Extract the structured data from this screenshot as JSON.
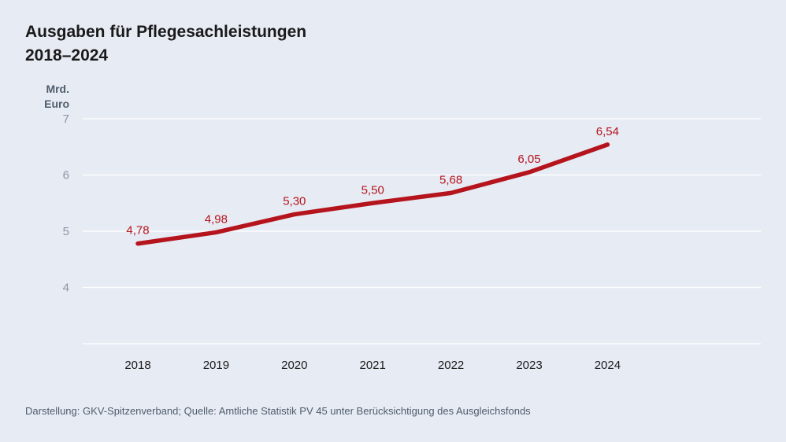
{
  "title": {
    "line1": "Ausgaben für Pflegesachleistungen",
    "line2": "2018–2024"
  },
  "unit": {
    "line1": "Mrd.",
    "line2": "Euro"
  },
  "source": "Darstellung: GKV-Spitzenverband; Quelle: Amtliche Statistik PV 45 unter Berücksichtigung des Ausgleichsfonds",
  "colors": {
    "background": "#e7ebf4",
    "line": "#b5141c",
    "gridline": "#ffffff"
  },
  "chart_data": {
    "type": "line",
    "title": "Ausgaben für Pflegesachleistungen 2018–2024",
    "ylabel": "Mrd. Euro",
    "xlabel": "",
    "categories": [
      "2018",
      "2019",
      "2020",
      "2021",
      "2022",
      "2023",
      "2024"
    ],
    "series": [
      {
        "values": [
          4.78,
          4.98,
          5.3,
          5.5,
          5.68,
          6.05,
          6.54
        ],
        "labels": [
          "4,78",
          "4,98",
          "5,30",
          "5,50",
          "5,68",
          "6,05",
          "6,54"
        ]
      }
    ],
    "ylim": [
      3,
      7
    ],
    "yticks": [
      4,
      5,
      6,
      7
    ],
    "ytick_labels": [
      "4",
      "5",
      "6",
      "7"
    ],
    "grid": true,
    "legend": "none"
  }
}
